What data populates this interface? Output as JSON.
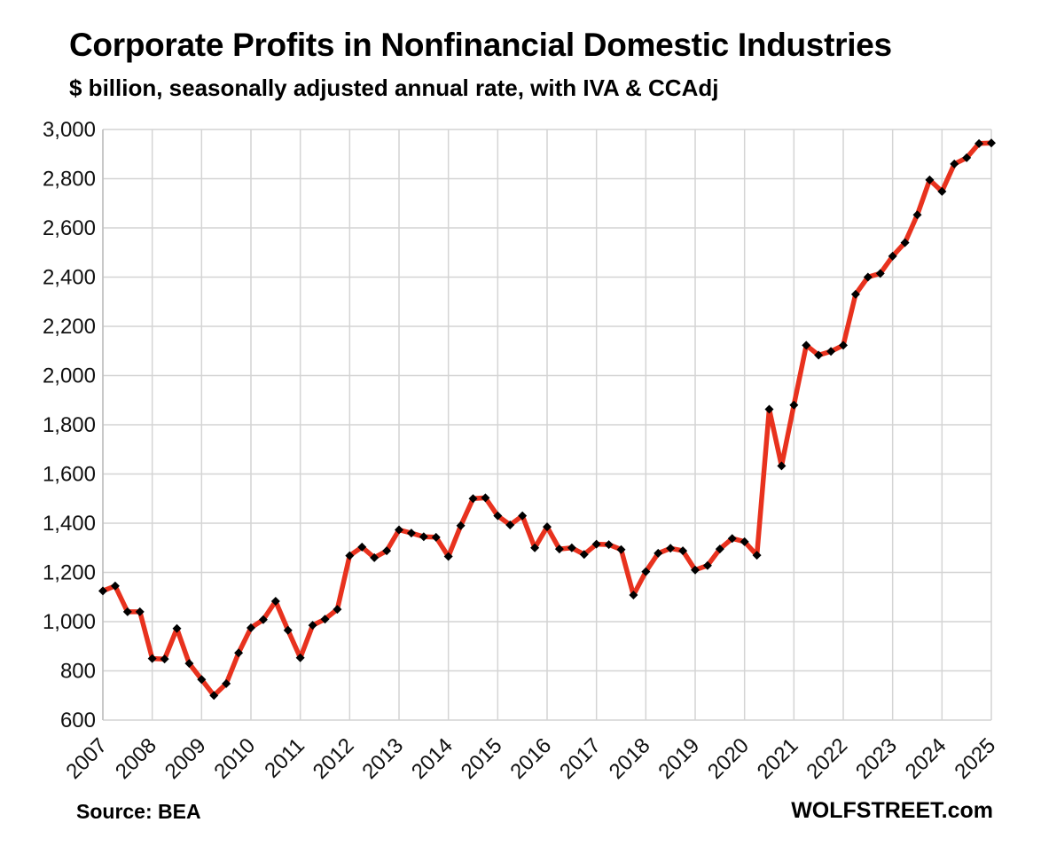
{
  "header": {
    "title": "Corporate Profits in Nonfinancial Domestic Industries",
    "subtitle": "$ billion, seasonally adjusted annual rate, with IVA & CCAdj"
  },
  "footer": {
    "source": "Source: BEA",
    "brand": "WOLFSTREET.com"
  },
  "chart_data": {
    "type": "line",
    "title": "Corporate Profits in Nonfinancial Domestic Industries",
    "subtitle": "$ billion, seasonally adjusted annual rate, with IVA & CCAdj",
    "xlabel": "",
    "ylabel": "",
    "ylim": [
      600,
      3000
    ],
    "y_ticks": [
      600,
      800,
      1000,
      1200,
      1400,
      1600,
      1800,
      2000,
      2200,
      2400,
      2600,
      2800,
      3000
    ],
    "y_tick_labels": [
      "600",
      "800",
      "1,000",
      "1,200",
      "1,400",
      "1,600",
      "1,800",
      "2,000",
      "2,200",
      "2,400",
      "2,600",
      "2,800",
      "3,000"
    ],
    "xlim": [
      2007,
      2025
    ],
    "x_ticks": [
      "2007",
      "2008",
      "2009",
      "2010",
      "2011",
      "2012",
      "2013",
      "2014",
      "2015",
      "2016",
      "2017",
      "2018",
      "2019",
      "2020",
      "2021",
      "2022",
      "2023",
      "2024",
      "2025"
    ],
    "grid": true,
    "line_color": "#e8321e",
    "marker_color": "#000000",
    "series": [
      {
        "name": "Corporate Profits",
        "x": [
          2007.0,
          2007.25,
          2007.5,
          2007.75,
          2008.0,
          2008.25,
          2008.5,
          2008.75,
          2009.0,
          2009.25,
          2009.5,
          2009.75,
          2010.0,
          2010.25,
          2010.5,
          2010.75,
          2011.0,
          2011.25,
          2011.5,
          2011.75,
          2012.0,
          2012.25,
          2012.5,
          2012.75,
          2013.0,
          2013.25,
          2013.5,
          2013.75,
          2014.0,
          2014.25,
          2014.5,
          2014.75,
          2015.0,
          2015.25,
          2015.5,
          2015.75,
          2016.0,
          2016.25,
          2016.5,
          2016.75,
          2017.0,
          2017.25,
          2017.5,
          2017.75,
          2018.0,
          2018.25,
          2018.5,
          2018.75,
          2019.0,
          2019.25,
          2019.5,
          2019.75,
          2020.0,
          2020.25,
          2020.5,
          2020.75,
          2021.0,
          2021.25,
          2021.5,
          2021.75,
          2022.0,
          2022.25,
          2022.5,
          2022.75,
          2023.0,
          2023.25,
          2023.5,
          2023.75,
          2024.0,
          2024.25,
          2024.5,
          2024.75,
          2025.0
        ],
        "values": [
          1125,
          1145,
          1040,
          1040,
          850,
          848,
          972,
          830,
          765,
          700,
          748,
          873,
          975,
          1008,
          1083,
          965,
          853,
          985,
          1010,
          1050,
          1268,
          1303,
          1260,
          1288,
          1373,
          1360,
          1345,
          1343,
          1265,
          1390,
          1500,
          1503,
          1430,
          1393,
          1430,
          1300,
          1385,
          1295,
          1300,
          1273,
          1315,
          1313,
          1293,
          1108,
          1203,
          1278,
          1298,
          1288,
          1210,
          1228,
          1295,
          1338,
          1325,
          1270,
          1863,
          1633,
          1880,
          2123,
          2083,
          2098,
          2123,
          2330,
          2400,
          2415,
          2485,
          2540,
          2653,
          2795,
          2748,
          2860,
          2885,
          2943,
          2945
        ]
      }
    ]
  }
}
